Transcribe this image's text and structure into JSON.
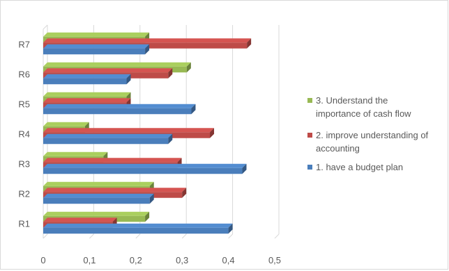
{
  "chart_data": {
    "type": "bar",
    "orientation": "horizontal",
    "style": "3d-clustered",
    "categories": [
      "R1",
      "R2",
      "R3",
      "R4",
      "R5",
      "R6",
      "R7"
    ],
    "series": [
      {
        "name": "1. have a budget plan",
        "color": "#4a7ebb",
        "values": [
          0.4,
          0.23,
          0.43,
          0.27,
          0.32,
          0.18,
          0.22
        ]
      },
      {
        "name": "2. improve understanding of accounting",
        "color": "#be4b48",
        "values": [
          0.15,
          0.3,
          0.29,
          0.36,
          0.18,
          0.27,
          0.44
        ]
      },
      {
        "name": "3. Understand the importance of cash flow",
        "color": "#98b954",
        "values": [
          0.22,
          0.23,
          0.13,
          0.09,
          0.18,
          0.31,
          0.22
        ]
      }
    ],
    "x_ticks": [
      "0",
      "0,1",
      "0,2",
      "0,3",
      "0,4",
      "0,5"
    ],
    "xlim": [
      0,
      0.5
    ],
    "grid": true,
    "legend_position": "right",
    "legend_order": [
      {
        "label_lines": [
          "3. Understand the",
          "importance of cash flow"
        ],
        "color": "#98b954"
      },
      {
        "label_lines": [
          "2. improve understanding of",
          "accounting"
        ],
        "color": "#be4b48"
      },
      {
        "label_lines": [
          "1. have a budget plan"
        ],
        "color": "#4a7ebb"
      }
    ]
  }
}
